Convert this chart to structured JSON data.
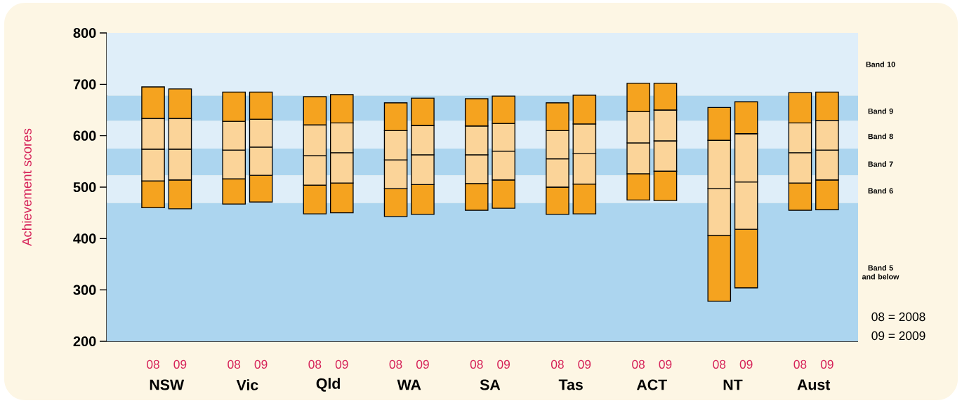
{
  "chart_data": {
    "type": "bar",
    "ylabel": "Achievement scores",
    "categories": [
      "08",
      "09",
      "08",
      "09",
      "08",
      "09",
      "08",
      "09",
      "08",
      "09",
      "08",
      "09",
      "08",
      "09",
      "08",
      "09",
      "08",
      "09"
    ],
    "series": [
      {
        "color": "#f5a31f",
        "base": [
          460,
          458,
          467,
          471,
          448,
          450,
          443,
          447,
          455,
          459,
          447,
          448,
          475,
          474,
          278,
          304,
          455,
          456
        ],
        "values": [
          52,
          56,
          49,
          52,
          56,
          58,
          54,
          58,
          52,
          55,
          53,
          58,
          51,
          57,
          128,
          114,
          53,
          58
        ]
      },
      {
        "color": "#fbd499",
        "base": [
          512,
          514,
          516,
          523,
          504,
          508,
          497,
          505,
          507,
          514,
          500,
          506,
          526,
          531,
          406,
          418,
          508,
          514
        ],
        "values": [
          62,
          60,
          56,
          55,
          57,
          59,
          56,
          58,
          56,
          56,
          55,
          59,
          60,
          59,
          91,
          92,
          59,
          58
        ]
      },
      {
        "color": "#fbd499",
        "base": [
          574,
          574,
          572,
          578,
          561,
          567,
          553,
          563,
          563,
          570,
          555,
          565,
          586,
          590,
          497,
          510,
          567,
          572
        ],
        "values": [
          60,
          60,
          56,
          54,
          60,
          58,
          57,
          57,
          56,
          54,
          55,
          58,
          61,
          60,
          94,
          94,
          58,
          58
        ]
      },
      {
        "color": "#f5a31f",
        "base": [
          634,
          634,
          628,
          632,
          621,
          625,
          610,
          620,
          619,
          624,
          610,
          623,
          647,
          650,
          591,
          604,
          625,
          630
        ],
        "values": [
          61,
          57,
          57,
          53,
          55,
          55,
          54,
          53,
          53,
          53,
          54,
          56,
          55,
          52,
          64,
          62,
          59,
          55
        ]
      }
    ],
    "ylim": [
      200,
      800
    ],
    "yticks": [
      200,
      300,
      400,
      500,
      600,
      700,
      800
    ],
    "bands": [
      {
        "axis": "y",
        "from": 678,
        "to": 800,
        "label": "Band 10",
        "color": "#dfeef9"
      },
      {
        "axis": "y",
        "from": 629,
        "to": 678,
        "label": "Band 9",
        "color": "#acd5ef"
      },
      {
        "axis": "y",
        "from": 575,
        "to": 629,
        "label": "Band 8",
        "color": "#dfeef9"
      },
      {
        "axis": "y",
        "from": 523,
        "to": 575,
        "label": "Band 7",
        "color": "#acd5ef"
      },
      {
        "axis": "y",
        "from": 469,
        "to": 523,
        "label": "Band 6",
        "color": "#dfeef9"
      },
      {
        "axis": "y",
        "from": 200,
        "to": 469,
        "label": "Band 5 and below",
        "color": "#acd5ef"
      }
    ],
    "annotations": [
      "NSW",
      "Vic",
      "Qld",
      "WA",
      "SA",
      "Tas",
      "ACT",
      "NT",
      "Aust",
      "08 = 2008",
      "09 = 2009"
    ]
  }
}
